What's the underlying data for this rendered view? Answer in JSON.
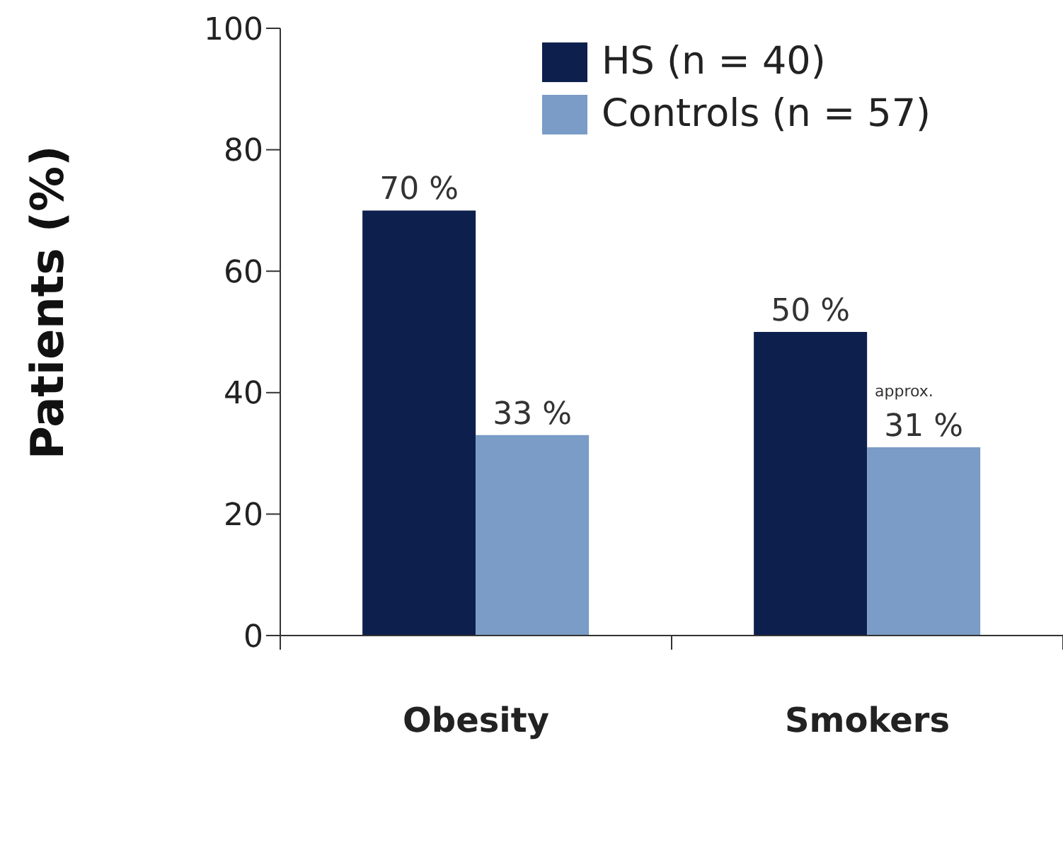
{
  "chart_data": {
    "type": "bar",
    "ylabel": "Patients (%)",
    "categories": [
      "Obesity",
      "Smokers"
    ],
    "series": [
      {
        "name": "HS (n = 40)",
        "color": "#0d1f4c",
        "values": [
          70,
          50
        ],
        "value_labels": [
          "70 %",
          "50 %"
        ]
      },
      {
        "name": "Controls (n = 57)",
        "color": "#7a9cc6",
        "values": [
          33,
          31
        ],
        "value_labels": [
          "33 %",
          "31 %"
        ]
      }
    ],
    "annotations": [
      "approx."
    ],
    "ylim": [
      0,
      100
    ],
    "yticks": [
      0,
      20,
      40,
      60,
      80,
      100
    ],
    "grid": false,
    "legend": "top right"
  }
}
